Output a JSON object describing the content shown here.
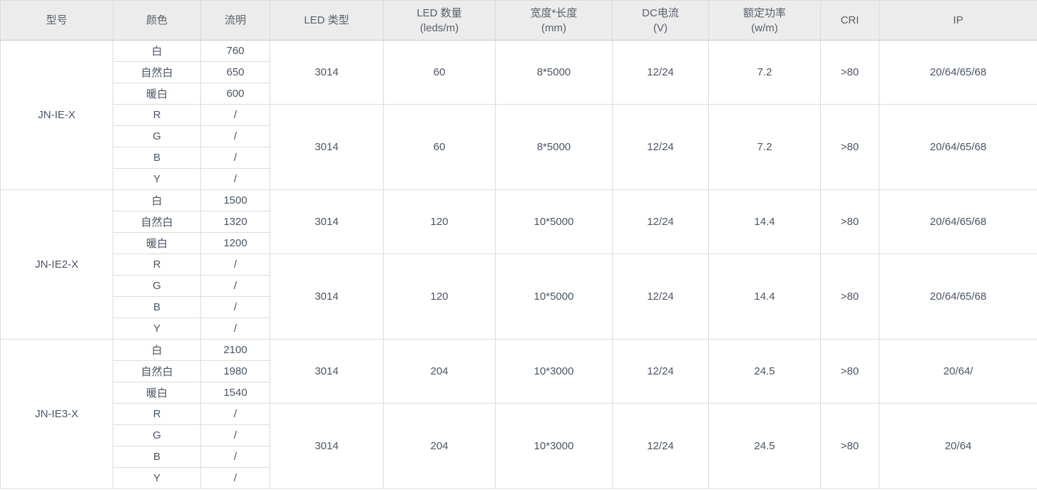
{
  "colors": {
    "header_bg": "#ececec",
    "header_text": "#5a6069",
    "body_text": "#4b5563",
    "border": "#dcdcdc",
    "outer_border": "#c3c3c3",
    "group_border": "#c9c9c9"
  },
  "table": {
    "headers": [
      {
        "label": "型号"
      },
      {
        "label": "颜色"
      },
      {
        "label": "流明"
      },
      {
        "label": "LED 类型"
      },
      {
        "label": "LED 数量",
        "sub": "(leds/m)"
      },
      {
        "label": "宽度*长度",
        "sub": "(mm)"
      },
      {
        "label": "DC电流",
        "sub": "(V)"
      },
      {
        "label": "额定功率",
        "sub": "(w/m)"
      },
      {
        "label": "CRI"
      },
      {
        "label": "IP"
      }
    ],
    "groups": [
      {
        "model": "JN-IE-X",
        "subgroups": [
          {
            "rows": [
              {
                "color": "白",
                "lumen": "760"
              },
              {
                "color": "自然白",
                "lumen": "650"
              },
              {
                "color": "暖白",
                "lumen": "600"
              }
            ],
            "led_type": "3014",
            "led_count": "60",
            "size": "8*5000",
            "dc": "12/24",
            "power": "7.2",
            "cri": ">80",
            "ip": "20/64/65/68"
          },
          {
            "rows": [
              {
                "color": "R",
                "lumen": "/"
              },
              {
                "color": "G",
                "lumen": "/"
              },
              {
                "color": "B",
                "lumen": "/"
              },
              {
                "color": "Y",
                "lumen": "/"
              }
            ],
            "led_type": "3014",
            "led_count": "60",
            "size": "8*5000",
            "dc": "12/24",
            "power": "7.2",
            "cri": ">80",
            "ip": "20/64/65/68"
          }
        ]
      },
      {
        "model": "JN-IE2-X",
        "subgroups": [
          {
            "rows": [
              {
                "color": "白",
                "lumen": "1500"
              },
              {
                "color": "自然白",
                "lumen": "1320"
              },
              {
                "color": "暖白",
                "lumen": "1200"
              }
            ],
            "led_type": "3014",
            "led_count": "120",
            "size": "10*5000",
            "dc": "12/24",
            "power": "14.4",
            "cri": ">80",
            "ip": "20/64/65/68"
          },
          {
            "rows": [
              {
                "color": "R",
                "lumen": "/"
              },
              {
                "color": "G",
                "lumen": "/"
              },
              {
                "color": "B",
                "lumen": "/"
              },
              {
                "color": "Y",
                "lumen": "/"
              }
            ],
            "led_type": "3014",
            "led_count": "120",
            "size": "10*5000",
            "dc": "12/24",
            "power": "14.4",
            "cri": ">80",
            "ip": "20/64/65/68"
          }
        ]
      },
      {
        "model": "JN-IE3-X",
        "subgroups": [
          {
            "rows": [
              {
                "color": "白",
                "lumen": "2100"
              },
              {
                "color": "自然白",
                "lumen": "1980"
              },
              {
                "color": "暖白",
                "lumen": "1540"
              }
            ],
            "led_type": "3014",
            "led_count": "204",
            "size": "10*3000",
            "dc": "12/24",
            "power": "24.5",
            "cri": ">80",
            "ip": "20/64/"
          },
          {
            "rows": [
              {
                "color": "R",
                "lumen": "/"
              },
              {
                "color": "G",
                "lumen": "/"
              },
              {
                "color": "B",
                "lumen": "/"
              },
              {
                "color": "Y",
                "lumen": "/"
              }
            ],
            "led_type": "3014",
            "led_count": "204",
            "size": "10*3000",
            "dc": "12/24",
            "power": "24.5",
            "cri": ">80",
            "ip": "20/64"
          }
        ]
      }
    ]
  }
}
